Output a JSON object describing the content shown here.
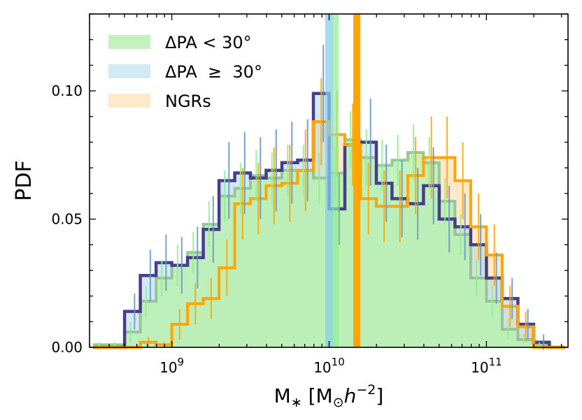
{
  "chart_data": {
    "type": "histogram",
    "xscale": "log",
    "xlim": [
      300000000.0,
      330000000000.0
    ],
    "ylim": [
      0,
      0.13
    ],
    "xlabel": "M",
    "xlabel_sub": "∗",
    "xlabel_unit": " [M",
    "xlabel_sun": "⊙",
    "xlabel_h": "h",
    "xlabel_exp": "−2",
    "xlabel_close": "]",
    "ylabel": "PDF",
    "x_ticks": [
      {
        "value": 1000000000.0,
        "base": "10",
        "exp": "9"
      },
      {
        "value": 10000000000.0,
        "base": "10",
        "exp": "10"
      },
      {
        "value": 100000000000.0,
        "base": "10",
        "exp": "11"
      }
    ],
    "y_ticks": [
      {
        "value": 0.0,
        "label": "0.00"
      },
      {
        "value": 0.05,
        "label": "0.05"
      },
      {
        "value": 0.1,
        "label": "0.10"
      }
    ],
    "bin_log_start": 8.5,
    "bin_log_width": 0.1,
    "series": [
      {
        "name": "ΔPA < 30°",
        "fill": "#b8f0b0",
        "fill_opacity": 0.85,
        "edge": "#8fbc8f",
        "err_color": "#90ee90",
        "values": [
          0.001,
          0.001,
          0.006,
          0.018,
          0.027,
          0.032,
          0.037,
          0.048,
          0.059,
          0.062,
          0.067,
          0.066,
          0.069,
          0.069,
          0.066,
          0.068,
          0.081,
          0.074,
          0.071,
          0.073,
          0.076,
          0.072,
          0.057,
          0.044,
          0.027,
          0.018,
          0.007,
          0.003,
          0.001,
          0.0
        ],
        "errors": [
          0.001,
          0.001,
          0.004,
          0.006,
          0.007,
          0.008,
          0.008,
          0.009,
          0.01,
          0.01,
          0.01,
          0.01,
          0.01,
          0.01,
          0.01,
          0.01,
          0.011,
          0.011,
          0.01,
          0.01,
          0.011,
          0.01,
          0.009,
          0.008,
          0.007,
          0.006,
          0.004,
          0.002,
          0.001,
          0.0
        ],
        "median": 11000000000.0,
        "median_color": "#90ee90"
      },
      {
        "name": "ΔPA  ≥  30°",
        "fill": "#add8e6",
        "fill_opacity": 0.55,
        "edge": "#483d8b",
        "err_color": "#6699cc",
        "values": [
          0.0,
          0.0,
          0.014,
          0.028,
          0.033,
          0.032,
          0.035,
          0.046,
          0.065,
          0.068,
          0.066,
          0.069,
          0.072,
          0.073,
          0.099,
          0.054,
          0.079,
          0.08,
          0.064,
          0.058,
          0.056,
          0.063,
          0.05,
          0.047,
          0.04,
          0.027,
          0.019,
          0.009,
          0.002,
          0.0
        ],
        "errors": [
          0.0,
          0.0,
          0.007,
          0.01,
          0.011,
          0.011,
          0.012,
          0.013,
          0.015,
          0.016,
          0.016,
          0.016,
          0.016,
          0.016,
          0.019,
          0.014,
          0.017,
          0.017,
          0.015,
          0.015,
          0.014,
          0.015,
          0.013,
          0.013,
          0.012,
          0.01,
          0.008,
          0.006,
          0.003,
          0.0
        ],
        "median": 10000000000.0,
        "median_color": "#87ceeb"
      },
      {
        "name": "NGRs",
        "fill": "#ffe0b3",
        "fill_opacity": 0.7,
        "edge": "#ffa500",
        "err_color": "#ffa500",
        "values": [
          0.0,
          0.0,
          0.0,
          0.002,
          0.001,
          0.009,
          0.017,
          0.019,
          0.031,
          0.056,
          0.058,
          0.063,
          0.064,
          0.069,
          0.088,
          0.083,
          0.079,
          0.058,
          0.055,
          0.055,
          0.067,
          0.074,
          0.074,
          0.065,
          0.047,
          0.036,
          0.016,
          0.008,
          0.0,
          0.0
        ],
        "errors": [
          0.0,
          0.0,
          0.0,
          0.002,
          0.001,
          0.006,
          0.008,
          0.008,
          0.011,
          0.014,
          0.014,
          0.015,
          0.015,
          0.016,
          0.017,
          0.017,
          0.016,
          0.014,
          0.014,
          0.014,
          0.015,
          0.016,
          0.016,
          0.015,
          0.013,
          0.012,
          0.008,
          0.006,
          0.0,
          0.0
        ],
        "median": 15000000000.0,
        "median_color": "#ffa500"
      }
    ],
    "legend": {
      "placement": "top-left",
      "entries": [
        {
          "series": 0,
          "label": "ΔPA < 30°"
        },
        {
          "series": 1,
          "label": "ΔPA  ≥  30°"
        },
        {
          "series": 2,
          "label": "NGRs"
        }
      ]
    }
  }
}
